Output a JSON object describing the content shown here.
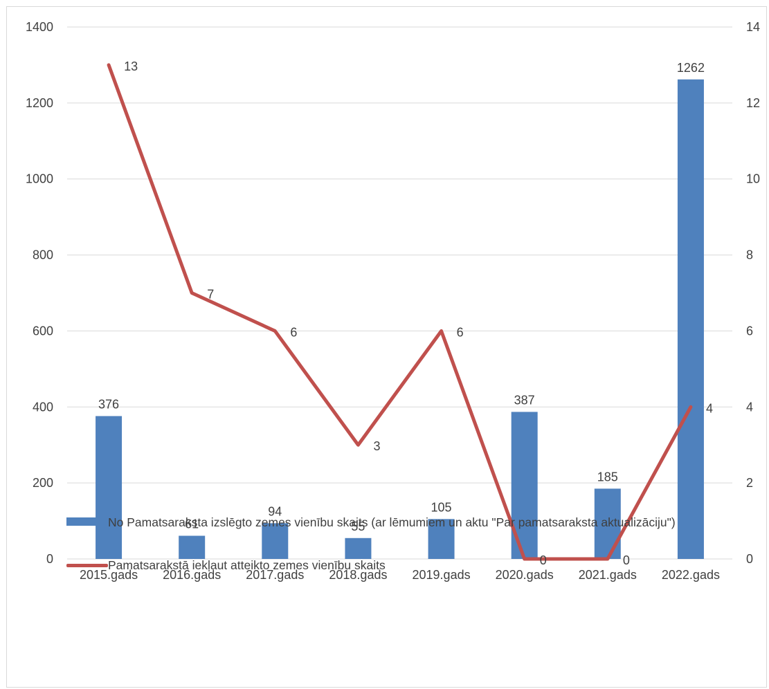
{
  "chart_data": {
    "type": "bar",
    "categories": [
      "2015.gads",
      "2016.gads",
      "2017.gads",
      "2018.gads",
      "2019.gads",
      "2020.gads",
      "2021.gads",
      "2022.gads"
    ],
    "series": [
      {
        "name": "No Pamatsaraksta  izslēgto zemes vienību skaits (ar lēmumiem un aktu \"Par pamatsaraksta aktualizāciju\")",
        "type": "bar",
        "axis": "left",
        "color": "#4f81bd",
        "values": [
          376,
          61,
          94,
          55,
          105,
          387,
          185,
          1262
        ]
      },
      {
        "name": "Pamatsarakstā iekļaut atteikto zemes vienību skaits",
        "type": "line",
        "axis": "right",
        "color": "#c0504d",
        "values": [
          13,
          7,
          6,
          3,
          6,
          0,
          0,
          4
        ]
      }
    ],
    "yleft": {
      "min": 0,
      "max": 1400,
      "ticks": [
        0,
        200,
        400,
        600,
        800,
        1000,
        1200,
        1400
      ]
    },
    "yright": {
      "min": 0,
      "max": 14,
      "ticks": [
        0,
        2,
        4,
        6,
        8,
        10,
        12,
        14
      ]
    },
    "grid": true,
    "legend_position": "bottom"
  }
}
